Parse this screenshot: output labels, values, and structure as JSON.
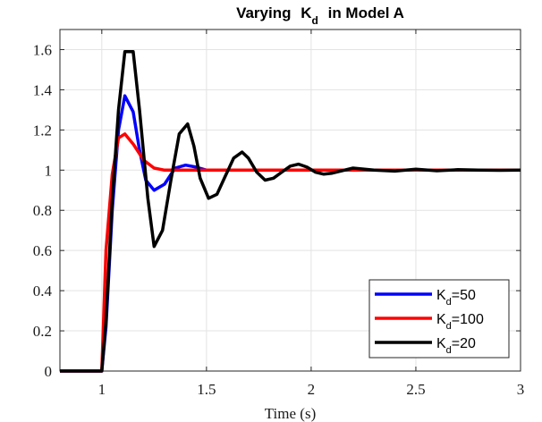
{
  "chart_data": {
    "type": "line",
    "title": {
      "prefix": "Varying",
      "symbol": "K",
      "subscript": "d",
      "suffix": "in Model A"
    },
    "xlabel": "Time (s)",
    "ylabel": "",
    "xlim": [
      0.8,
      3.0
    ],
    "ylim": [
      0,
      1.7
    ],
    "xticks": [
      1,
      1.5,
      2,
      2.5,
      3
    ],
    "xtick_labels": [
      "1",
      "1.5",
      "2",
      "2.5",
      "3"
    ],
    "yticks": [
      0,
      0.2,
      0.4,
      0.6,
      0.8,
      1.0,
      1.2,
      1.4,
      1.6
    ],
    "ytick_labels": [
      "0",
      "0.2",
      "0.4",
      "0.6",
      "0.8",
      "1",
      "1.2",
      "1.4",
      "1.6"
    ],
    "grid": true,
    "legend_position": "bottom-right",
    "series": [
      {
        "name": "Kd=50",
        "legend": {
          "symbol": "K",
          "subscript": "d",
          "value": "=50"
        },
        "color": "#0000ff",
        "x": [
          0.8,
          1.0,
          1.02,
          1.05,
          1.08,
          1.11,
          1.15,
          1.18,
          1.21,
          1.25,
          1.3,
          1.35,
          1.4,
          1.45,
          1.5,
          1.6,
          1.7,
          1.8,
          2.0,
          2.5,
          3.0
        ],
        "y": [
          0,
          0,
          0.22,
          0.8,
          1.2,
          1.37,
          1.29,
          1.1,
          0.95,
          0.9,
          0.93,
          1.01,
          1.025,
          1.015,
          1.0,
          1.0,
          1.0,
          1.0,
          1.0,
          1.0,
          1.0
        ]
      },
      {
        "name": "Kd=100",
        "legend": {
          "symbol": "K",
          "subscript": "d",
          "value": "=100"
        },
        "color": "#ff0000",
        "x": [
          0.8,
          1.0,
          1.02,
          1.05,
          1.08,
          1.11,
          1.15,
          1.2,
          1.25,
          1.3,
          1.4,
          1.5,
          2.0,
          2.5,
          3.0
        ],
        "y": [
          0,
          0,
          0.6,
          0.98,
          1.16,
          1.18,
          1.13,
          1.05,
          1.01,
          1.0,
          1.0,
          1.0,
          1.0,
          1.0,
          1.0
        ]
      },
      {
        "name": "Kd=20",
        "legend": {
          "symbol": "K",
          "subscript": "d",
          "value": "=20"
        },
        "color": "#000000",
        "x": [
          0.8,
          1.0,
          1.02,
          1.05,
          1.08,
          1.11,
          1.15,
          1.18,
          1.22,
          1.25,
          1.29,
          1.33,
          1.37,
          1.41,
          1.44,
          1.47,
          1.51,
          1.55,
          1.59,
          1.63,
          1.67,
          1.7,
          1.74,
          1.78,
          1.82,
          1.86,
          1.9,
          1.94,
          1.98,
          2.02,
          2.06,
          2.1,
          2.2,
          2.3,
          2.4,
          2.5,
          2.6,
          2.7,
          2.8,
          2.9,
          3.0
        ],
        "y": [
          0,
          0,
          0.25,
          0.85,
          1.3,
          1.59,
          1.59,
          1.3,
          0.86,
          0.62,
          0.7,
          0.95,
          1.18,
          1.23,
          1.12,
          0.96,
          0.86,
          0.88,
          0.97,
          1.06,
          1.09,
          1.06,
          0.99,
          0.95,
          0.96,
          0.99,
          1.02,
          1.03,
          1.015,
          0.99,
          0.98,
          0.985,
          1.01,
          1.0,
          0.995,
          1.005,
          0.997,
          1.002,
          1.0,
          0.999,
          1.0
        ]
      }
    ]
  }
}
